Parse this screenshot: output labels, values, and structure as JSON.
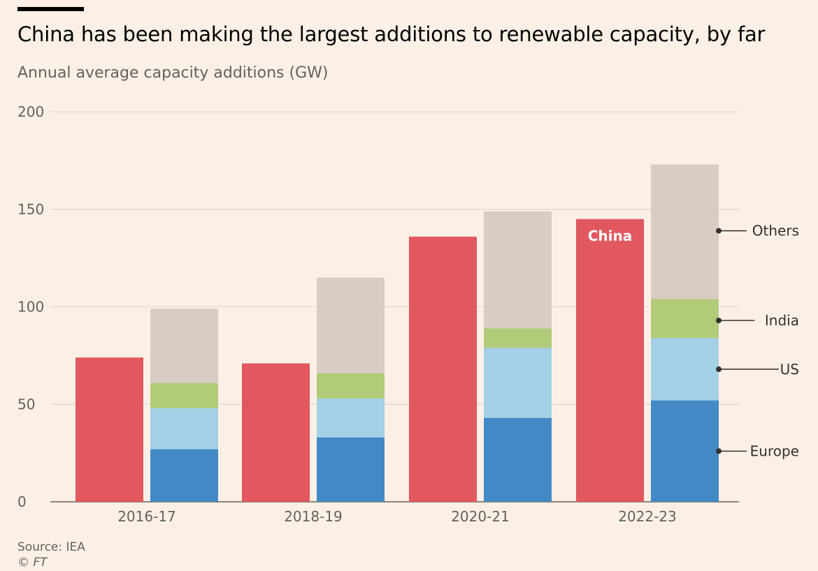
{
  "header": {
    "title": "China has been making the largest additions to renewable capacity, by far",
    "subtitle": "Annual average capacity additions (GW)"
  },
  "footer": {
    "source": "Source: IEA",
    "copyright": "© FT"
  },
  "chart_data": {
    "type": "bar",
    "subtype": "grouped bar: China single bar + rest-of-world stacked bar per period",
    "categories": [
      "2016-17",
      "2018-19",
      "2020-21",
      "2022-23"
    ],
    "ylim": [
      0,
      200
    ],
    "yticks": [
      0,
      50,
      100,
      150,
      200
    ],
    "grid": true,
    "legend_placement": "right, labels pointing at stacked segments of the last bar",
    "china": {
      "name": "China",
      "color": "#E1585E",
      "values": [
        74,
        71,
        136,
        145
      ]
    },
    "stacked": [
      {
        "name": "Europe",
        "color": "#4389C6",
        "values": [
          27,
          33,
          43,
          52
        ]
      },
      {
        "name": "US",
        "color": "#A3D0E4",
        "values": [
          21,
          20,
          36,
          32
        ]
      },
      {
        "name": "India",
        "color": "#B1CB78",
        "values": [
          13,
          13,
          10,
          20
        ]
      },
      {
        "name": "Others",
        "color": "#D8CCC4",
        "values": [
          38,
          49,
          60,
          69
        ]
      }
    ],
    "colors": {
      "background": "#FCF0E6",
      "grid": "#D9D2CB",
      "axis": "#66605C",
      "leader": "#33302E"
    }
  }
}
